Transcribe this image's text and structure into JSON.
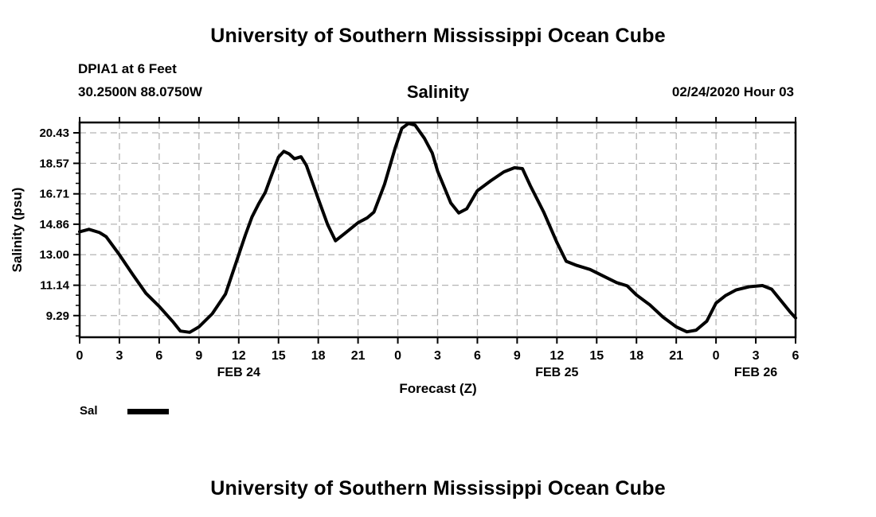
{
  "header": {
    "top_title": "University of Southern Mississippi Ocean Cube",
    "station_name": "DPIA1 at 6 Feet",
    "station_coords": "30.2500N 88.0750W",
    "plot_title": "Salinity",
    "datetime_label": "02/24/2020 Hour 03"
  },
  "footer": {
    "bottom_title": "University of Southern Mississippi Ocean Cube"
  },
  "chart_data": {
    "type": "line",
    "title": "Salinity",
    "xlabel": "Forecast (Z)",
    "ylabel": "Salinity (psu)",
    "xlim": [
      0,
      54
    ],
    "ylim": [
      7.97,
      21.06
    ],
    "grid": true,
    "grid_style": "dashed",
    "colors": {
      "line": "#000000",
      "frame": "#000000",
      "grid": "#b4b4b4",
      "background": "#ffffff"
    },
    "y_ticks": [
      {
        "v": 20.43,
        "label": "20.43"
      },
      {
        "v": 18.57,
        "label": "18.57"
      },
      {
        "v": 16.71,
        "label": "16.71"
      },
      {
        "v": 14.86,
        "label": "14.86"
      },
      {
        "v": 13.0,
        "label": "13.00"
      },
      {
        "v": 11.14,
        "label": "11.14"
      },
      {
        "v": 9.29,
        "label": "9.29"
      }
    ],
    "y_minor_step": 0.62,
    "x_ticks": [
      {
        "x": 0,
        "label": "0"
      },
      {
        "x": 3,
        "label": "3"
      },
      {
        "x": 6,
        "label": "6"
      },
      {
        "x": 9,
        "label": "9"
      },
      {
        "x": 12,
        "label": "12"
      },
      {
        "x": 15,
        "label": "15"
      },
      {
        "x": 18,
        "label": "18"
      },
      {
        "x": 21,
        "label": "21"
      },
      {
        "x": 24,
        "label": "0"
      },
      {
        "x": 27,
        "label": "3"
      },
      {
        "x": 30,
        "label": "6"
      },
      {
        "x": 33,
        "label": "9"
      },
      {
        "x": 36,
        "label": "12"
      },
      {
        "x": 39,
        "label": "15"
      },
      {
        "x": 42,
        "label": "18"
      },
      {
        "x": 45,
        "label": "21"
      },
      {
        "x": 48,
        "label": "0"
      },
      {
        "x": 51,
        "label": "3"
      },
      {
        "x": 54,
        "label": "6"
      }
    ],
    "day_labels": [
      {
        "x": 12,
        "label": "FEB 24"
      },
      {
        "x": 36,
        "label": "FEB 25"
      },
      {
        "x": 51,
        "label": "FEB 26"
      }
    ],
    "legend_position": "bottom-left",
    "series": [
      {
        "name": "Sal",
        "color": "#000000",
        "points": [
          [
            0,
            14.4
          ],
          [
            0.7,
            14.55
          ],
          [
            1.5,
            14.35
          ],
          [
            2,
            14.1
          ],
          [
            3,
            13.0
          ],
          [
            4,
            11.8
          ],
          [
            5,
            10.65
          ],
          [
            6,
            9.85
          ],
          [
            7,
            8.95
          ],
          [
            7.6,
            8.35
          ],
          [
            8.3,
            8.27
          ],
          [
            9,
            8.6
          ],
          [
            10,
            9.4
          ],
          [
            11,
            10.6
          ],
          [
            12,
            13.0
          ],
          [
            12.5,
            14.2
          ],
          [
            13,
            15.3
          ],
          [
            13.5,
            16.1
          ],
          [
            14,
            16.8
          ],
          [
            14.5,
            17.9
          ],
          [
            15,
            18.95
          ],
          [
            15.4,
            19.3
          ],
          [
            15.8,
            19.15
          ],
          [
            16.2,
            18.85
          ],
          [
            16.7,
            18.97
          ],
          [
            17.1,
            18.45
          ],
          [
            18,
            16.4
          ],
          [
            18.7,
            14.85
          ],
          [
            19.3,
            13.85
          ],
          [
            20,
            14.3
          ],
          [
            21,
            14.95
          ],
          [
            21.7,
            15.25
          ],
          [
            22.2,
            15.6
          ],
          [
            23,
            17.3
          ],
          [
            23.8,
            19.5
          ],
          [
            24.3,
            20.7
          ],
          [
            24.8,
            21.0
          ],
          [
            25.3,
            20.9
          ],
          [
            26,
            20.1
          ],
          [
            26.6,
            19.2
          ],
          [
            27,
            18.1
          ],
          [
            28,
            16.15
          ],
          [
            28.6,
            15.55
          ],
          [
            29.2,
            15.8
          ],
          [
            30,
            16.9
          ],
          [
            31,
            17.5
          ],
          [
            32,
            18.05
          ],
          [
            32.8,
            18.3
          ],
          [
            33.4,
            18.25
          ],
          [
            34,
            17.2
          ],
          [
            35,
            15.6
          ],
          [
            36,
            13.75
          ],
          [
            36.7,
            12.6
          ],
          [
            37.5,
            12.35
          ],
          [
            38.5,
            12.1
          ],
          [
            39.5,
            11.7
          ],
          [
            40.5,
            11.3
          ],
          [
            41.3,
            11.1
          ],
          [
            42,
            10.55
          ],
          [
            43,
            9.95
          ],
          [
            44,
            9.2
          ],
          [
            45,
            8.6
          ],
          [
            45.8,
            8.3
          ],
          [
            46.5,
            8.4
          ],
          [
            47.3,
            8.95
          ],
          [
            48,
            10.05
          ],
          [
            48.7,
            10.5
          ],
          [
            49.5,
            10.85
          ],
          [
            50.5,
            11.05
          ],
          [
            51.5,
            11.12
          ],
          [
            52.2,
            10.9
          ],
          [
            53,
            10.1
          ],
          [
            53.6,
            9.5
          ],
          [
            54,
            9.15
          ]
        ]
      }
    ]
  }
}
